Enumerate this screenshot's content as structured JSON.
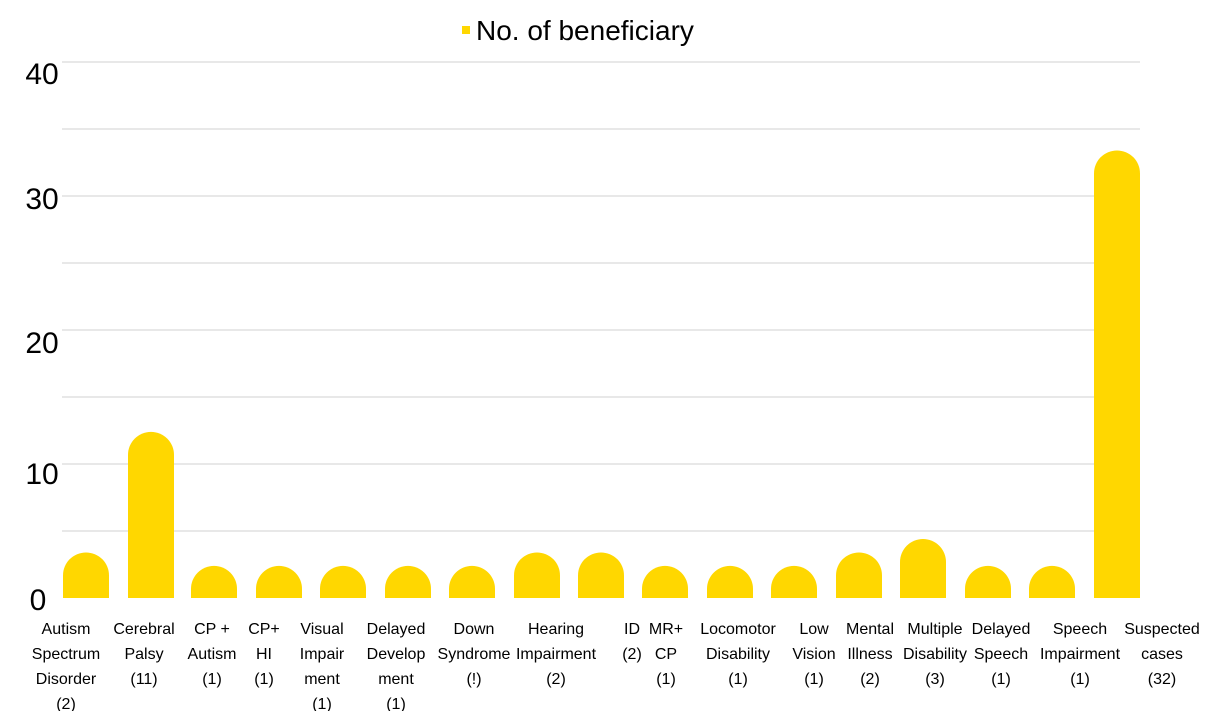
{
  "chart_data": {
    "type": "bar",
    "legend": {
      "position": "top",
      "series_name": "No. of beneficiary"
    },
    "colors": {
      "bar": "#FFD700",
      "grid": "#d0d0d0",
      "text": "#000000"
    },
    "grid": true,
    "ylim": [
      0,
      40
    ],
    "major_ticks": [
      0,
      10,
      20,
      30,
      40
    ],
    "minor_gridlines": [
      5,
      15,
      25,
      35
    ],
    "categories": [
      [
        "Autism",
        "Spectrum",
        "Disorder",
        "(2)"
      ],
      [
        "Cerebral",
        "Palsy",
        "(11)"
      ],
      [
        "CP +",
        "Autism",
        "(1)"
      ],
      [
        "CP+",
        "HI",
        "(1)"
      ],
      [
        "Visual",
        "Impair",
        "ment",
        "(1)"
      ],
      [
        "Delayed",
        "Develop",
        "ment",
        "(1)"
      ],
      [
        "Down",
        "Syndrome",
        "(!)"
      ],
      [
        "Hearing",
        "Impairment",
        "(2)"
      ],
      [
        "ID",
        "(2)"
      ],
      [
        "MR+",
        "CP",
        "(1)"
      ],
      [
        "Locomotor",
        "Disability",
        "(1)"
      ],
      [
        "Low",
        "Vision",
        "(1)"
      ],
      [
        "Mental",
        "Illness",
        "(2)"
      ],
      [
        "Multiple",
        "Disability",
        "(3)"
      ],
      [
        "Delayed",
        "Speech",
        "(1)"
      ],
      [
        "Speech",
        "Impairment",
        "(1)"
      ],
      [
        "Suspected",
        "cases",
        "(32)"
      ]
    ],
    "series": [
      {
        "name": "No. of beneficiary",
        "values": [
          2,
          11,
          1,
          1,
          1,
          1,
          1,
          2,
          2,
          1,
          1,
          1,
          2,
          3,
          1,
          1,
          32
        ]
      }
    ]
  }
}
